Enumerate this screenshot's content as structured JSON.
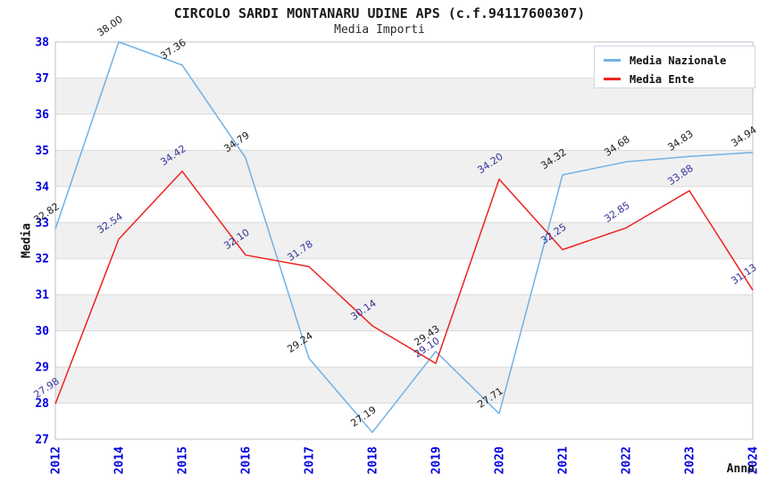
{
  "title": "CIRCOLO SARDI MONTANARU UDINE APS (c.f.94117600307)",
  "subtitle": "Media Importi",
  "ylabel": "Media",
  "xlabel": "Anno",
  "legend": [
    {
      "label": "Media Nazionale",
      "color": "#73b1e3"
    },
    {
      "label": "Media Ente",
      "color": "#ee2222"
    }
  ],
  "colors": {
    "axis_tick_label": "#0000dd",
    "grid_line": "#d9d9d9",
    "band_fill": "#f0f0f0",
    "plot_border": "#c0c0c0",
    "blue_series_label": "#1a1a1a",
    "red_series_label": "#333399"
  },
  "chart_data": {
    "type": "line",
    "title": "CIRCOLO SARDI MONTANARU UDINE APS (c.f.94117600307)",
    "subtitle": "Media Importi",
    "xlabel": "Anno",
    "ylabel": "Media",
    "categories": [
      "2012",
      "2014",
      "2015",
      "2016",
      "2017",
      "2018",
      "2019",
      "2020",
      "2021",
      "2022",
      "2023",
      "2024"
    ],
    "series": [
      {
        "name": "Media Nazionale",
        "color": "#73b1e3",
        "label_color": "#1a1a1a",
        "values": [
          32.82,
          38.0,
          37.36,
          34.79,
          29.24,
          27.19,
          29.43,
          27.71,
          34.32,
          34.68,
          34.83,
          34.94
        ]
      },
      {
        "name": "Media Ente",
        "color": "#ee2222",
        "label_color": "#333399",
        "values": [
          27.98,
          32.54,
          34.42,
          32.1,
          31.78,
          30.14,
          29.1,
          34.2,
          32.25,
          32.85,
          33.88,
          31.13
        ]
      }
    ],
    "ylim": [
      27,
      38
    ],
    "ytick_step": 1,
    "grid": true,
    "alternating_bands": true,
    "legend_position": "top-right",
    "point_labels": "two-decimals, rotated"
  }
}
